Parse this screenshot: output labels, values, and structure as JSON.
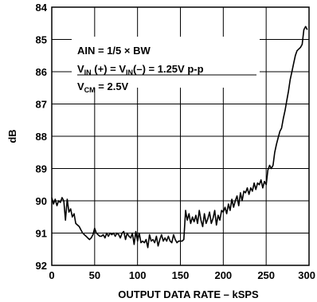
{
  "chart_data": {
    "type": "line",
    "title": "",
    "xlabel": "OUTPUT DATA RATE – kSPS",
    "ylabel": "dB",
    "xlim": [
      0,
      300
    ],
    "ylim": [
      84,
      92
    ],
    "y_inverted": true,
    "grid": true,
    "x_ticks": [
      "0",
      "50",
      "100",
      "150",
      "200",
      "250",
      "300"
    ],
    "y_ticks": [
      "84",
      "85",
      "86",
      "87",
      "88",
      "89",
      "90",
      "91",
      "92"
    ],
    "annotations": {
      "line1": "AIN = 1/5 × BW",
      "line2_main_a": "V",
      "line2_sub_a": "IN",
      "line2_main_b": " (+) = V",
      "line2_sub_b": "IN",
      "line2_main_c": "(–) = 1.25V p-p",
      "line3_main": "V",
      "line3_sub": "CM",
      "line3_rest": " = 2.5V"
    },
    "series": [
      {
        "x": [
          0,
          2,
          4,
          6,
          8,
          10,
          12,
          14,
          16,
          18,
          20,
          22,
          24,
          26,
          28,
          30,
          32,
          34,
          36,
          38,
          40,
          42,
          44,
          46,
          48,
          50,
          52,
          54,
          56,
          58,
          60,
          62,
          64,
          66,
          68,
          70,
          72,
          74,
          76,
          78,
          80,
          82,
          84,
          86,
          88,
          90,
          92,
          94,
          96,
          98,
          100,
          102,
          104,
          106,
          108,
          110,
          112,
          114,
          116,
          118,
          120,
          122,
          124,
          126,
          128,
          130,
          132,
          134,
          136,
          138,
          140,
          142,
          144,
          146,
          148,
          150,
          152,
          154,
          156,
          158,
          160,
          162,
          164,
          166,
          168,
          170,
          172,
          174,
          176,
          178,
          180,
          182,
          184,
          186,
          188,
          190,
          192,
          194,
          196,
          198,
          200,
          202,
          204,
          206,
          208,
          210,
          212,
          214,
          216,
          218,
          220,
          222,
          224,
          226,
          228,
          230,
          232,
          234,
          236,
          238,
          240,
          242,
          244,
          246,
          248,
          250,
          252,
          254,
          256,
          258,
          260,
          262,
          264,
          266,
          268,
          270,
          272,
          274,
          276,
          278,
          280,
          282,
          284,
          286,
          288,
          290,
          292,
          294,
          296,
          298
        ],
        "y": [
          89.9,
          90.1,
          89.95,
          90.15,
          90.0,
          90.05,
          89.9,
          90.0,
          90.6,
          89.95,
          90.35,
          90.25,
          90.5,
          90.4,
          90.7,
          90.75,
          90.8,
          90.9,
          91.0,
          91.05,
          91.1,
          91.15,
          91.2,
          91.15,
          91.05,
          90.85,
          91.0,
          91.05,
          91.1,
          91.1,
          91.05,
          91.15,
          91.0,
          91.1,
          91.0,
          91.05,
          91.0,
          91.1,
          91.0,
          91.05,
          91.15,
          91.0,
          90.95,
          91.2,
          91.0,
          91.1,
          91.15,
          91.0,
          91.35,
          90.95,
          91.25,
          91.0,
          91.3,
          91.25,
          91.3,
          91.2,
          91.45,
          91.05,
          91.25,
          91.2,
          91.3,
          91.1,
          91.4,
          91.2,
          91.05,
          91.25,
          91.15,
          91.25,
          91.1,
          91.25,
          91.3,
          91.05,
          91.2,
          91.3,
          91.25,
          91.25,
          91.25,
          91.2,
          90.3,
          90.6,
          90.4,
          90.7,
          90.5,
          90.65,
          90.45,
          90.7,
          90.3,
          90.6,
          90.8,
          90.4,
          90.7,
          90.55,
          90.35,
          90.7,
          90.55,
          90.3,
          90.75,
          90.45,
          90.6,
          90.3,
          90.35,
          90.2,
          90.4,
          90.1,
          90.3,
          89.95,
          90.2,
          90.0,
          89.85,
          90.15,
          89.75,
          90.0,
          89.7,
          89.75,
          89.6,
          89.8,
          89.6,
          89.7,
          89.45,
          89.65,
          89.45,
          89.5,
          89.35,
          89.6,
          89.4,
          89.5,
          89.05,
          88.9,
          89.0,
          88.9,
          88.5,
          88.25,
          88.05,
          87.85,
          87.75,
          87.45,
          87.2,
          86.9,
          86.6,
          86.25,
          86.0,
          85.75,
          85.5,
          85.35,
          85.3,
          85.25,
          85.15,
          84.7,
          84.6,
          84.7
        ]
      }
    ]
  }
}
